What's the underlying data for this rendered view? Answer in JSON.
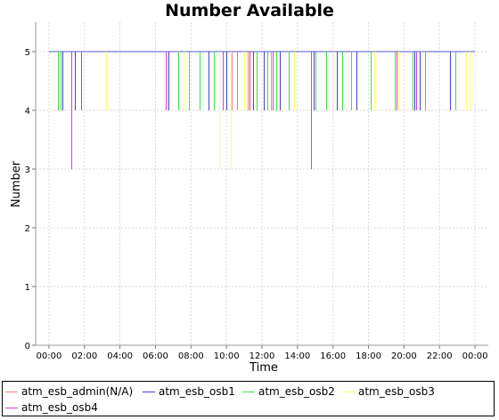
{
  "chart_data": {
    "type": "line",
    "title": "Number Available",
    "xlabel": "Time",
    "ylabel": "Number",
    "ylim": [
      0,
      5.5
    ],
    "yticks": [
      "0",
      "1",
      "2",
      "3",
      "4",
      "5"
    ],
    "xlim": [
      -0.75,
      24.75
    ],
    "xticks": [
      "00:00",
      "02:00",
      "04:00",
      "06:00",
      "08:00",
      "10:00",
      "12:00",
      "14:00",
      "16:00",
      "18:00",
      "20:00",
      "22:00",
      "00:00"
    ],
    "grid": true,
    "legend_position": "bottom",
    "baseline": 5,
    "series": [
      {
        "name": "atm_esb_admin(N/A)",
        "color": "#ff7f7f",
        "dips": [
          {
            "t": 10.3,
            "min": 4
          },
          {
            "t": 11.2,
            "min": 4
          },
          {
            "t": 12.5,
            "min": 4
          }
        ]
      },
      {
        "name": "atm_esb_osb1",
        "color": "#4444cc",
        "dips": [
          {
            "t": 0.75,
            "min": 4
          },
          {
            "t": 1.45,
            "min": 4
          },
          {
            "t": 6.75,
            "min": 4
          },
          {
            "t": 9.0,
            "min": 4
          },
          {
            "t": 10.0,
            "min": 4
          },
          {
            "t": 11.5,
            "min": 4
          },
          {
            "t": 12.1,
            "min": 4
          },
          {
            "t": 13.0,
            "min": 4
          },
          {
            "t": 14.9,
            "min": 4
          },
          {
            "t": 16.2,
            "min": 4
          },
          {
            "t": 17.3,
            "min": 4
          },
          {
            "t": 20.6,
            "min": 4
          },
          {
            "t": 20.9,
            "min": 4
          },
          {
            "t": 22.6,
            "min": 4
          }
        ]
      },
      {
        "name": "atm_esb_osb2",
        "color": "#44dd44",
        "dips": [
          {
            "t": 0.5,
            "min": 4
          },
          {
            "t": 0.65,
            "min": 4
          },
          {
            "t": 7.3,
            "min": 4
          },
          {
            "t": 7.9,
            "min": 4
          },
          {
            "t": 8.5,
            "min": 4
          },
          {
            "t": 9.3,
            "min": 4
          },
          {
            "t": 10.6,
            "min": 4
          },
          {
            "t": 11.7,
            "min": 4
          },
          {
            "t": 12.3,
            "min": 4
          },
          {
            "t": 12.8,
            "min": 4
          },
          {
            "t": 13.5,
            "min": 4
          },
          {
            "t": 15.0,
            "min": 4
          },
          {
            "t": 15.6,
            "min": 4
          },
          {
            "t": 16.5,
            "min": 4
          },
          {
            "t": 17.0,
            "min": 4
          },
          {
            "t": 18.1,
            "min": 4
          },
          {
            "t": 19.5,
            "min": 4
          },
          {
            "t": 20.5,
            "min": 4
          },
          {
            "t": 21.2,
            "min": 4
          },
          {
            "t": 22.9,
            "min": 4
          }
        ]
      },
      {
        "name": "atm_esb_osb3",
        "color": "#ffff66",
        "dips": [
          {
            "t": 3.2,
            "min": 4
          },
          {
            "t": 7.6,
            "min": 4
          },
          {
            "t": 9.6,
            "min": 3
          },
          {
            "t": 10.25,
            "min": 3
          },
          {
            "t": 11.0,
            "min": 4
          },
          {
            "t": 13.8,
            "min": 4
          },
          {
            "t": 16.0,
            "min": 4
          },
          {
            "t": 18.3,
            "min": 4
          },
          {
            "t": 19.7,
            "min": 4
          },
          {
            "t": 21.0,
            "min": 4
          },
          {
            "t": 23.5,
            "min": 4
          },
          {
            "t": 23.7,
            "min": 4
          }
        ]
      },
      {
        "name": "atm_esb_osb4",
        "color": "#cc44cc",
        "dips": [
          {
            "t": 1.25,
            "min": 3
          },
          {
            "t": 1.8,
            "min": 4
          },
          {
            "t": 6.6,
            "min": 4
          },
          {
            "t": 9.8,
            "min": 4
          },
          {
            "t": 11.3,
            "min": 4
          },
          {
            "t": 12.6,
            "min": 4
          },
          {
            "t": 14.75,
            "min": 3
          },
          {
            "t": 19.6,
            "min": 4
          },
          {
            "t": 20.7,
            "min": 4
          }
        ]
      }
    ]
  }
}
